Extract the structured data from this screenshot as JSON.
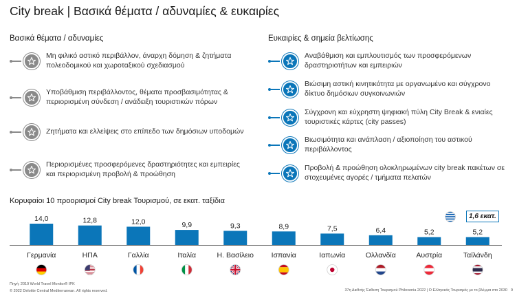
{
  "title": "City break | Βασικά θέματα / αδυναμίες & ευκαιρίες",
  "left_column": {
    "heading": "Βασικά θέματα / αδυναμίες",
    "items": [
      "Μη φιλικό αστικό περιβάλλον, άναρχη δόμηση & ζητήματα πολεοδομικού και χωροταξικού σχεδιασμού",
      "Υποβάθμιση περιβάλλοντος, θέματα προσβασιμότητας & περιορισμένη σύνδεση / ανάδειξη τουριστικών πόρων",
      "Ζητήματα και ελλείψεις στο επίπεδο των δημόσιων υποδομών",
      "Περιορισμένες προσφερόμενες δραστηριότητες και εμπειρίες και περιορισμένη προβολή & προώθηση"
    ]
  },
  "right_column": {
    "heading": "Ευκαιρίες & σημεία βελτίωσης",
    "items": [
      "Αναβάθμιση και εμπλουτισμός των προσφερόμενων δραστηριοτήτων και εμπειριών",
      "Βιώσιμη αστική κινητικότητα με οργανωμένο και σύγχρονο δίκτυο δημόσιων συγκοινωνιών",
      "Σύγχρονη και εύχρηστη ψηφιακή πύλη City Break & ενιαίες τουριστικές κάρτες (city passes)",
      "Βιωσιμότητα και ανάπλαση / αξιοποίηση του αστικού περιβάλλοντος",
      "Προβολή & προώθηση ολοκληρωμένων city break πακέτων σε στοχευμένες αγορές / τμήματα πελατών"
    ]
  },
  "chart_title": "Κορυφαίοι 10 προορισμοί City break Τουρισμού, σε εκατ. ταξίδια",
  "chart_data": {
    "type": "bar",
    "categories": [
      "Γερμανία",
      "ΗΠΑ",
      "Γαλλία",
      "Ιταλία",
      "Η. Βασίλειο",
      "Ισπανία",
      "Ιαπωνία",
      "Ολλανδία",
      "Αυστρία",
      "Ταϊλάνδη"
    ],
    "values": [
      14.0,
      12.8,
      12.0,
      9.9,
      9.3,
      8.9,
      7.5,
      6.4,
      5.2,
      5.2
    ],
    "data_labels": [
      "14,0",
      "12,8",
      "12,0",
      "9,9",
      "9,3",
      "8,9",
      "7,5",
      "6,4",
      "5,2",
      "5,2"
    ],
    "flags": [
      "flag-germany-icon",
      "flag-usa-icon",
      "flag-france-icon",
      "flag-italy-icon",
      "flag-uk-icon",
      "flag-spain-icon",
      "flag-japan-icon",
      "flag-netherlands-icon",
      "flag-austria-icon",
      "flag-thailand-icon"
    ],
    "bar_color": "#0b76b9",
    "ylim": [
      0,
      14
    ]
  },
  "callout": {
    "text": "1,6 εκατ.",
    "icon": "flag-greece-icon"
  },
  "footer": {
    "source": "Πηγή: 2019 World Travel Monitor® IPK",
    "copyright": "© 2022 Deloitte Central Mediterranean. All rights reserved.",
    "event": "37η Διεθνής Έκθεση Τουρισμού Philoxenia 2022 | Ο Ελληνικός Τουρισμός με το βλέμμα στο 2030",
    "page": "9"
  },
  "colors": {
    "accent": "#0b76b9",
    "grey": "#8a8a8a"
  }
}
